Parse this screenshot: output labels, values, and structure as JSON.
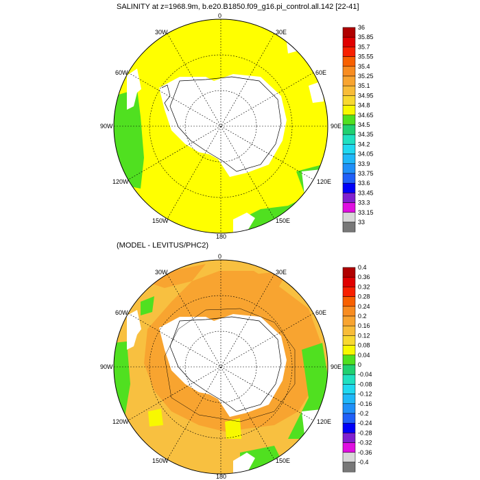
{
  "top_panel": {
    "title": "SALINITY at z=1968.9m, b.e20.B1850.f09_g16.pi_control.all.142 [22-41]",
    "colorbar_levels": [
      "36",
      "35.85",
      "35.7",
      "35.55",
      "35.4",
      "35.25",
      "35.1",
      "34.95",
      "34.8",
      "34.65",
      "34.5",
      "34.35",
      "34.2",
      "34.05",
      "33.9",
      "33.75",
      "33.6",
      "33.45",
      "33.3",
      "33.15",
      "33"
    ]
  },
  "bottom_panel": {
    "title": "(MODEL - LEVITUS/PHC2)",
    "colorbar_levels": [
      "0.4",
      "0.36",
      "0.32",
      "0.28",
      "0.24",
      "0.2",
      "0.16",
      "0.12",
      "0.08",
      "0.04",
      "0",
      "-0.04",
      "-0.08",
      "-0.12",
      "-0.16",
      "-0.2",
      "-0.24",
      "-0.28",
      "-0.32",
      "-0.36",
      "-0.4"
    ]
  },
  "longitude_labels": {
    "top": "0",
    "top_left": "30W",
    "top_right": "30E",
    "upper_left": "60W",
    "upper_right": "60E",
    "left": "90W",
    "right": "90E",
    "lower_left": "120W",
    "lower_right": "120E",
    "bottom_left": "150W",
    "bottom_right": "150E",
    "bottom": "180"
  },
  "colors": {
    "colorbar": [
      "#b00000",
      "#e00000",
      "#f82000",
      "#f86000",
      "#f88c20",
      "#f8a430",
      "#f8bc38",
      "#f8d830",
      "#f8f800",
      "#50e020",
      "#20d070",
      "#20e0c0",
      "#20d8f0",
      "#20b8f8",
      "#2090f8",
      "#2060f8",
      "#0000f8",
      "#8020d0",
      "#e010e0",
      "#d8d8d8",
      "#787878"
    ],
    "ocean_top": "#ffff00",
    "coastal_top": "#50e020",
    "ocean_bottom": "#f8c040",
    "warm_bottom": "#f8a430",
    "green_bottom": "#50e020",
    "land": "#ffffff"
  }
}
